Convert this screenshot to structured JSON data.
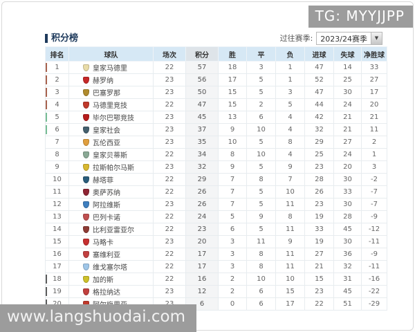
{
  "watermarks": {
    "top": "TG: MYYJJPP",
    "bottom": "www.langshuodai.com"
  },
  "title": "积分榜",
  "season_filter": {
    "label": "过往赛季:",
    "value": "2023/24赛季",
    "chevron": "▼"
  },
  "zone_colors": {
    "ucl": "#a8624e",
    "uel": "#77bd95",
    "relegation": "#5c5c5c"
  },
  "table": {
    "headers": [
      "排名",
      "球队",
      "场次",
      "积分",
      "胜",
      "平",
      "负",
      "进球",
      "失球",
      "净胜球"
    ],
    "rows": [
      {
        "rank": 1,
        "team": "皇家马德里",
        "played": 22,
        "points": 57,
        "win": 18,
        "draw": 3,
        "loss": 1,
        "gf": 47,
        "ga": 14,
        "gd": 33,
        "zone": "ucl",
        "crest": "#e9dca8"
      },
      {
        "rank": 2,
        "team": "赫罗纳",
        "played": 23,
        "points": 56,
        "win": 17,
        "draw": 5,
        "loss": 1,
        "gf": 52,
        "ga": 25,
        "gd": 27,
        "zone": "ucl",
        "crest": "#c62828"
      },
      {
        "rank": 3,
        "team": "巴塞罗那",
        "played": 23,
        "points": 50,
        "win": 15,
        "draw": 5,
        "loss": 3,
        "gf": 47,
        "ga": 30,
        "gd": 17,
        "zone": "ucl",
        "crest": "#b08b2e"
      },
      {
        "rank": 4,
        "team": "马德里竞技",
        "played": 22,
        "points": 47,
        "win": 15,
        "draw": 2,
        "loss": 5,
        "gf": 44,
        "ga": 24,
        "gd": 20,
        "zone": "ucl",
        "crest": "#c0392b"
      },
      {
        "rank": 5,
        "team": "毕尔巴鄂竞技",
        "played": 23,
        "points": 45,
        "win": 13,
        "draw": 6,
        "loss": 4,
        "gf": 42,
        "ga": 21,
        "gd": 21,
        "zone": "uel",
        "crest": "#b71c1c"
      },
      {
        "rank": 6,
        "team": "皇家社会",
        "played": 23,
        "points": 37,
        "win": 9,
        "draw": 10,
        "loss": 4,
        "gf": 32,
        "ga": 21,
        "gd": 11,
        "zone": "uel",
        "crest": "#44606e"
      },
      {
        "rank": 7,
        "team": "瓦伦西亚",
        "played": 23,
        "points": 35,
        "win": 10,
        "draw": 5,
        "loss": 8,
        "gf": 29,
        "ga": 27,
        "gd": 2,
        "zone": null,
        "crest": "#e09f3e"
      },
      {
        "rank": 8,
        "team": "皇家贝蒂斯",
        "played": 22,
        "points": 34,
        "win": 8,
        "draw": 10,
        "loss": 4,
        "gf": 25,
        "ga": 24,
        "gd": 1,
        "zone": null,
        "crest": "#8aa995"
      },
      {
        "rank": 9,
        "team": "拉斯帕尔马斯",
        "played": 23,
        "points": 32,
        "win": 9,
        "draw": 5,
        "loss": 9,
        "gf": 23,
        "ga": 20,
        "gd": 3,
        "zone": null,
        "crest": "#d8b830"
      },
      {
        "rank": 10,
        "team": "赫塔菲",
        "played": 22,
        "points": 29,
        "win": 7,
        "draw": 8,
        "loss": 7,
        "gf": 28,
        "ga": 30,
        "gd": -2,
        "zone": null,
        "crest": "#2a5d7c"
      },
      {
        "rank": 11,
        "team": "奥萨苏纳",
        "played": 22,
        "points": 26,
        "win": 7,
        "draw": 5,
        "loss": 10,
        "gf": 26,
        "ga": 33,
        "gd": -7,
        "zone": null,
        "crest": "#8e2433"
      },
      {
        "rank": 12,
        "team": "阿拉维斯",
        "played": 23,
        "points": 26,
        "win": 7,
        "draw": 5,
        "loss": 11,
        "gf": 23,
        "ga": 30,
        "gd": -7,
        "zone": null,
        "crest": "#3f7fbf"
      },
      {
        "rank": 13,
        "team": "巴列卡诺",
        "played": 22,
        "points": 24,
        "win": 5,
        "draw": 9,
        "loss": 8,
        "gf": 19,
        "ga": 28,
        "gd": -9,
        "zone": null,
        "crest": "#c05050"
      },
      {
        "rank": 14,
        "team": "比利亚雷亚尔",
        "played": 22,
        "points": 23,
        "win": 6,
        "draw": 5,
        "loss": 11,
        "gf": 33,
        "ga": 45,
        "gd": -12,
        "zone": null,
        "crest": "#8e3b35"
      },
      {
        "rank": 15,
        "team": "马略卡",
        "played": 23,
        "points": 20,
        "win": 3,
        "draw": 11,
        "loss": 9,
        "gf": 19,
        "ga": 30,
        "gd": -11,
        "zone": null,
        "crest": "#c62f2f"
      },
      {
        "rank": 16,
        "team": "塞维利亚",
        "played": 22,
        "points": 17,
        "win": 3,
        "draw": 8,
        "loss": 11,
        "gf": 27,
        "ga": 36,
        "gd": -9,
        "zone": null,
        "crest": "#c24040"
      },
      {
        "rank": 17,
        "team": "维戈塞尔塔",
        "played": 22,
        "points": 17,
        "win": 3,
        "draw": 8,
        "loss": 11,
        "gf": 21,
        "ga": 32,
        "gd": -11,
        "zone": null,
        "crest": "#9fc6e8"
      },
      {
        "rank": 18,
        "team": "加的斯",
        "played": 22,
        "points": 16,
        "win": 2,
        "draw": 10,
        "loss": 10,
        "gf": 15,
        "ga": 31,
        "gd": -16,
        "zone": "relegation",
        "crest": "#cdc02a"
      },
      {
        "rank": 19,
        "team": "格拉纳达",
        "played": 23,
        "points": 12,
        "win": 2,
        "draw": 6,
        "loss": 15,
        "gf": 23,
        "ga": 45,
        "gd": -22,
        "zone": "relegation",
        "crest": "#c1403d"
      },
      {
        "rank": 20,
        "team": "阿尔梅里亚",
        "played": 23,
        "points": 6,
        "win": 0,
        "draw": 6,
        "loss": 17,
        "gf": 22,
        "ga": 51,
        "gd": -29,
        "zone": "relegation",
        "crest": "#c0392b"
      }
    ]
  }
}
